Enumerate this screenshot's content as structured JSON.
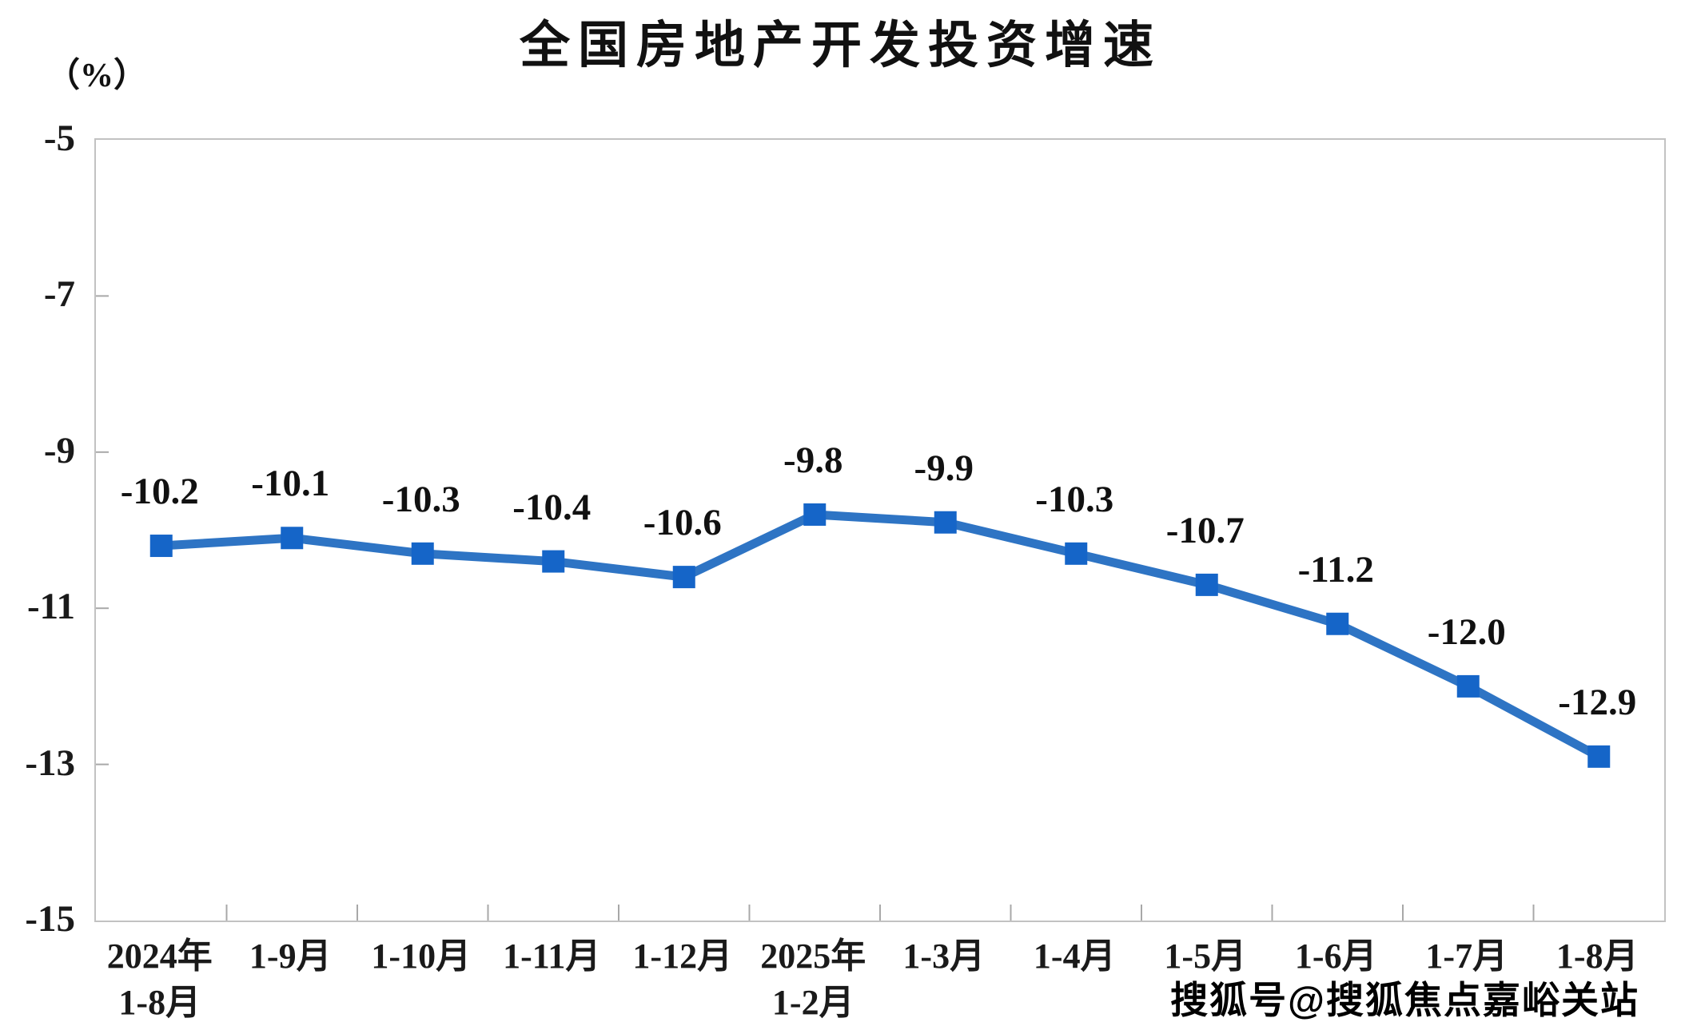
{
  "page": {
    "watermark": "搜狐号@搜狐焦点嘉峪关站"
  },
  "chart_data": {
    "type": "line",
    "title": "全国房地产开发投资增速",
    "unit_label": "（%）",
    "categories": [
      [
        "2024年",
        "1-8月"
      ],
      [
        "1-9月"
      ],
      [
        "1-10月"
      ],
      [
        "1-11月"
      ],
      [
        "1-12月"
      ],
      [
        "2025年",
        "1-2月"
      ],
      [
        "1-3月"
      ],
      [
        "1-4月"
      ],
      [
        "1-5月"
      ],
      [
        "1-6月"
      ],
      [
        "1-7月"
      ],
      [
        "1-8月"
      ]
    ],
    "series": [
      {
        "name": "全国房地产开发投资增速",
        "values": [
          -10.2,
          -10.1,
          -10.3,
          -10.4,
          -10.6,
          -9.8,
          -9.9,
          -10.3,
          -10.7,
          -11.2,
          -12.0,
          -12.9
        ],
        "labels": [
          "-10.2",
          "-10.1",
          "-10.3",
          "-10.4",
          "-10.6",
          "-9.8",
          "-9.9",
          "-10.3",
          "-10.7",
          "-11.2",
          "-12.0",
          "-12.9"
        ]
      }
    ],
    "ylim": [
      -15,
      -5
    ],
    "yticks": [
      -5,
      -7,
      -9,
      -11,
      -13,
      -15
    ],
    "ytick_labels": [
      "-5",
      "-7",
      "-9",
      "-11",
      "-13",
      "-15"
    ],
    "grid": false,
    "legend": false,
    "line_color": "#2E74C4",
    "marker_color": "#1565C8",
    "axis_border_color": "#c2c2c2",
    "tick_mark_color": "#a8a8a8",
    "text_color": "#1a1a1a"
  }
}
